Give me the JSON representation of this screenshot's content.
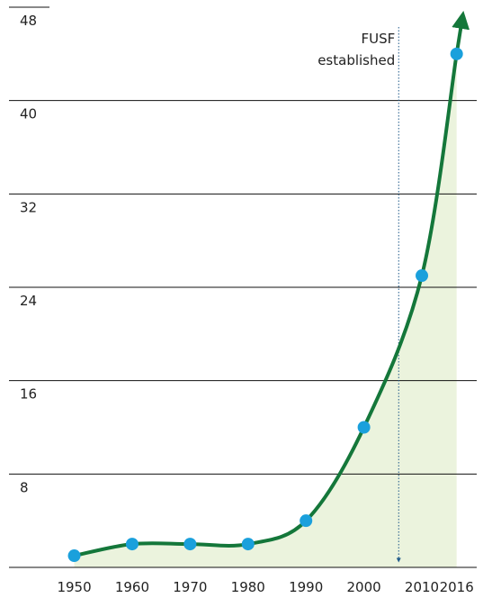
{
  "chart_data": {
    "type": "line",
    "x": [
      1950,
      1960,
      1970,
      1980,
      1990,
      2000,
      2010,
      2016
    ],
    "values": [
      1,
      2,
      2,
      2,
      4,
      12,
      25,
      44
    ],
    "xticks": [
      1950,
      1960,
      1970,
      1980,
      1990,
      2000,
      2010,
      2016
    ],
    "xlim": [
      1942,
      2019
    ],
    "ylim": [
      0,
      48
    ],
    "yticks": [
      0,
      8,
      16,
      24,
      32,
      40,
      48
    ],
    "grid": true,
    "color": "#14773a",
    "marker_color": "#1aa0dc",
    "fill_color": "#ebf3dd",
    "annotation": {
      "text_lines": [
        "FUSF",
        "established"
      ],
      "x": 2006
    }
  }
}
